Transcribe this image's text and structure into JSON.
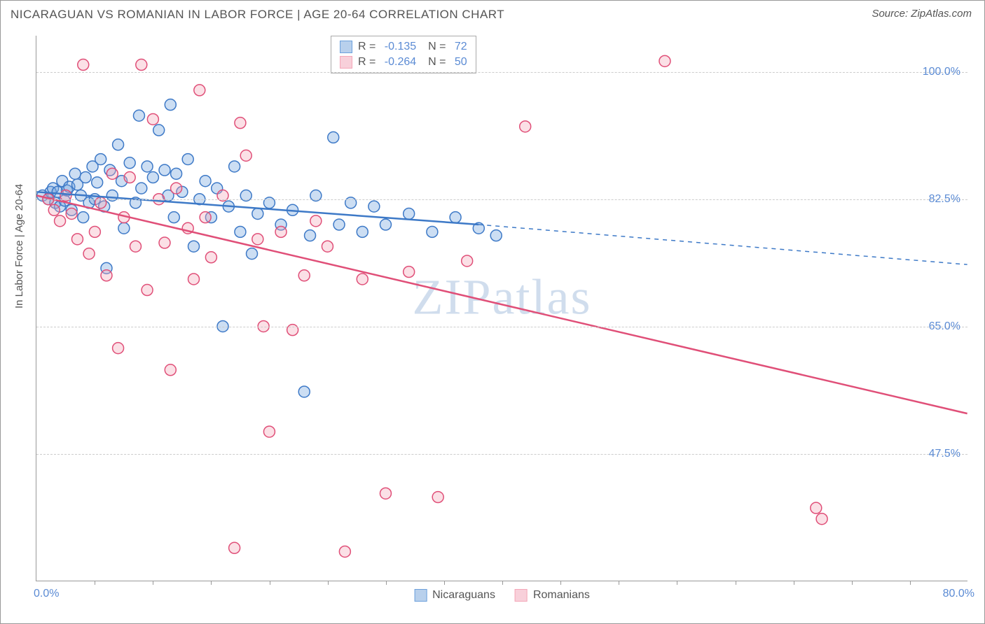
{
  "title": "NICARAGUAN VS ROMANIAN IN LABOR FORCE | AGE 20-64 CORRELATION CHART",
  "source": "Source: ZipAtlas.com",
  "ylabel": "In Labor Force | Age 20-64",
  "watermark_left": "ZIP",
  "watermark_right": "atlas",
  "chart": {
    "type": "scatter",
    "xlim": [
      0,
      80
    ],
    "ylim": [
      30,
      105
    ],
    "x_ticks": [
      0,
      80
    ],
    "x_minor_ticks": [
      5,
      10,
      15,
      20,
      25,
      30,
      35,
      40,
      45,
      50,
      55,
      60,
      65,
      70,
      75
    ],
    "x_tick_labels": [
      "0.0%",
      "80.0%"
    ],
    "y_ticks": [
      47.5,
      65.0,
      82.5,
      100.0
    ],
    "y_tick_labels": [
      "47.5%",
      "65.0%",
      "82.5%",
      "100.0%"
    ],
    "grid_color": "#cccccc",
    "background_color": "#ffffff",
    "axis_color": "#999999",
    "label_color": "#5b8bd4",
    "marker_radius": 8,
    "marker_fill_opacity": 0.35,
    "marker_stroke_width": 1.5,
    "series": [
      {
        "name": "Nicaraguans",
        "color": "#6ca0dc",
        "stroke": "#3d79c7",
        "R": "-0.135",
        "N": "72",
        "trend": {
          "x1": 0,
          "y1": 83.5,
          "x2": 38,
          "y2": 79.0,
          "dash_x2": 80,
          "dash_y2": 73.5,
          "width": 2.5
        },
        "points": [
          [
            0.5,
            83
          ],
          [
            1,
            82.5
          ],
          [
            1.2,
            83.5
          ],
          [
            1.4,
            84
          ],
          [
            1.6,
            82
          ],
          [
            1.8,
            83.5
          ],
          [
            2,
            81.5
          ],
          [
            2.2,
            85
          ],
          [
            2.4,
            82.3
          ],
          [
            2.6,
            83.7
          ],
          [
            2.8,
            84.2
          ],
          [
            3,
            81
          ],
          [
            3.3,
            86
          ],
          [
            3.5,
            84.5
          ],
          [
            3.8,
            83
          ],
          [
            4,
            80
          ],
          [
            4.2,
            85.5
          ],
          [
            4.5,
            82
          ],
          [
            4.8,
            87
          ],
          [
            5,
            82.5
          ],
          [
            5.2,
            84.8
          ],
          [
            5.5,
            88
          ],
          [
            5.8,
            81.5
          ],
          [
            6,
            73
          ],
          [
            6.3,
            86.5
          ],
          [
            6.5,
            83
          ],
          [
            7,
            90
          ],
          [
            7.3,
            85
          ],
          [
            7.5,
            78.5
          ],
          [
            8,
            87.5
          ],
          [
            8.5,
            82
          ],
          [
            8.8,
            94
          ],
          [
            9,
            84
          ],
          [
            9.5,
            87
          ],
          [
            10,
            85.5
          ],
          [
            10.5,
            92
          ],
          [
            11,
            86.5
          ],
          [
            11.3,
            83
          ],
          [
            11.5,
            95.5
          ],
          [
            11.8,
            80
          ],
          [
            12,
            86
          ],
          [
            12.5,
            83.5
          ],
          [
            13,
            88
          ],
          [
            13.5,
            76
          ],
          [
            14,
            82.5
          ],
          [
            14.5,
            85
          ],
          [
            15,
            80
          ],
          [
            15.5,
            84
          ],
          [
            16,
            65
          ],
          [
            16.5,
            81.5
          ],
          [
            17,
            87
          ],
          [
            17.5,
            78
          ],
          [
            18,
            83
          ],
          [
            18.5,
            75
          ],
          [
            19,
            80.5
          ],
          [
            20,
            82
          ],
          [
            21,
            79
          ],
          [
            22,
            81
          ],
          [
            23,
            56
          ],
          [
            23.5,
            77.5
          ],
          [
            24,
            83
          ],
          [
            25.5,
            91
          ],
          [
            26,
            79
          ],
          [
            27,
            82
          ],
          [
            28,
            78
          ],
          [
            29,
            81.5
          ],
          [
            30,
            79
          ],
          [
            32,
            80.5
          ],
          [
            34,
            78
          ],
          [
            36,
            80
          ],
          [
            38,
            78.5
          ],
          [
            39.5,
            77.5
          ]
        ]
      },
      {
        "name": "Romanians",
        "color": "#f4a6b8",
        "stroke": "#e04f78",
        "R": "-0.264",
        "N": "50",
        "trend": {
          "x1": 0,
          "y1": 83.0,
          "x2": 80,
          "y2": 53.0,
          "width": 2.5
        },
        "points": [
          [
            1,
            82.5
          ],
          [
            1.5,
            81
          ],
          [
            2,
            79.5
          ],
          [
            2.5,
            83
          ],
          [
            3,
            80.5
          ],
          [
            3.5,
            77
          ],
          [
            4,
            101
          ],
          [
            4.5,
            75
          ],
          [
            5,
            78
          ],
          [
            5.5,
            82
          ],
          [
            6,
            72
          ],
          [
            6.5,
            86
          ],
          [
            7,
            62
          ],
          [
            7.5,
            80
          ],
          [
            8,
            85.5
          ],
          [
            8.5,
            76
          ],
          [
            9,
            101
          ],
          [
            9.5,
            70
          ],
          [
            10,
            93.5
          ],
          [
            10.5,
            82.5
          ],
          [
            11,
            76.5
          ],
          [
            11.5,
            59
          ],
          [
            12,
            84
          ],
          [
            13,
            78.5
          ],
          [
            13.5,
            71.5
          ],
          [
            14,
            97.5
          ],
          [
            14.5,
            80
          ],
          [
            15,
            74.5
          ],
          [
            16,
            83
          ],
          [
            17,
            34.5
          ],
          [
            17.5,
            93
          ],
          [
            18,
            88.5
          ],
          [
            19,
            77
          ],
          [
            19.5,
            65
          ],
          [
            20,
            50.5
          ],
          [
            21,
            78
          ],
          [
            22,
            64.5
          ],
          [
            23,
            72
          ],
          [
            24,
            79.5
          ],
          [
            25,
            76
          ],
          [
            26.5,
            34
          ],
          [
            28,
            71.5
          ],
          [
            30,
            42
          ],
          [
            32,
            72.5
          ],
          [
            34.5,
            41.5
          ],
          [
            37,
            74
          ],
          [
            42,
            92.5
          ],
          [
            54,
            101.5
          ],
          [
            67,
            40
          ],
          [
            67.5,
            38.5
          ]
        ]
      }
    ]
  },
  "legend_bottom": [
    {
      "label": "Nicaraguans",
      "fill": "#b8d0ec",
      "stroke": "#6ca0dc"
    },
    {
      "label": "Romanians",
      "fill": "#f8d0da",
      "stroke": "#f4a6b8"
    }
  ]
}
